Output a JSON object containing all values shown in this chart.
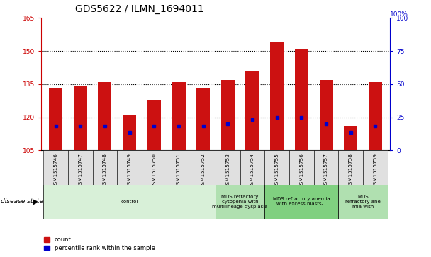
{
  "title": "GDS5622 / ILMN_1694011",
  "samples": [
    "GSM1515746",
    "GSM1515747",
    "GSM1515748",
    "GSM1515749",
    "GSM1515750",
    "GSM1515751",
    "GSM1515752",
    "GSM1515753",
    "GSM1515754",
    "GSM1515755",
    "GSM1515756",
    "GSM1515757",
    "GSM1515758",
    "GSM1515759"
  ],
  "counts": [
    133,
    134,
    136,
    121,
    128,
    136,
    133,
    137,
    141,
    154,
    151,
    137,
    116,
    136
  ],
  "percentile_values": [
    116,
    116,
    116,
    113,
    116,
    116,
    116,
    117,
    119,
    120,
    120,
    117,
    113,
    116
  ],
  "ylim_left": [
    105,
    165
  ],
  "ylim_right": [
    0,
    100
  ],
  "yticks_left": [
    105,
    120,
    135,
    150,
    165
  ],
  "yticks_right": [
    0,
    25,
    50,
    75,
    100
  ],
  "bar_color": "#cc1111",
  "marker_color": "#0000cc",
  "background_color": "#ffffff",
  "disease_groups": [
    {
      "label": "control",
      "start": 0,
      "end": 6,
      "color": "#d8f0d8"
    },
    {
      "label": "MDS refractory\ncytopenia with\nmultilineage dysplasia",
      "start": 7,
      "end": 8,
      "color": "#b0e0b0"
    },
    {
      "label": "MDS refractory anemia\nwith excess blasts-1",
      "start": 9,
      "end": 11,
      "color": "#80d080"
    },
    {
      "label": "MDS\nrefractory ane\nmia with",
      "start": 12,
      "end": 13,
      "color": "#b0e0b0"
    }
  ],
  "bar_width": 0.55,
  "title_fontsize": 10,
  "tick_fontsize": 6.5,
  "left_tick_color": "#cc0000",
  "right_tick_color": "#0000cc",
  "grid_linestyle": "dotted",
  "grid_linewidth": 0.8,
  "grid_yticks": [
    120,
    135,
    150
  ]
}
